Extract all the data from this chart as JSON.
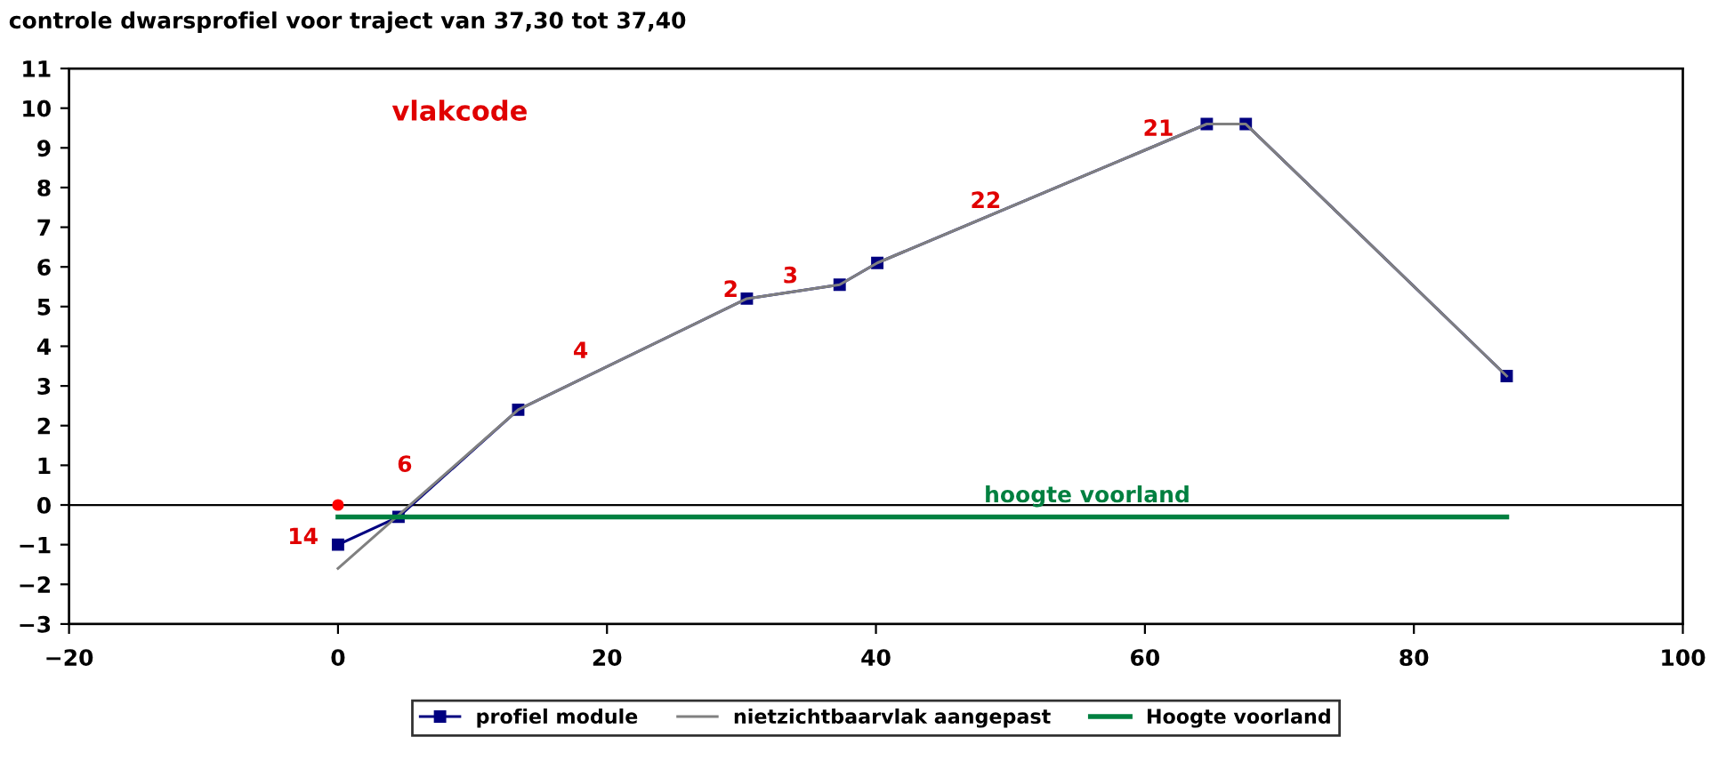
{
  "chart_data": {
    "type": "line",
    "title": "controle dwarsprofiel voor traject van 37,30 tot 37,40",
    "xlim": [
      -20,
      100
    ],
    "xticks": [
      -20,
      0,
      20,
      40,
      60,
      80,
      100
    ],
    "ylim": [
      -3,
      11
    ],
    "yticks": [
      -3,
      -2,
      -1,
      0,
      1,
      2,
      3,
      4,
      5,
      6,
      7,
      8,
      9,
      10,
      11
    ],
    "grid": false,
    "legend": "bottom",
    "ref_lines": [
      {
        "axis": "y",
        "value": 0,
        "color": "#000000"
      }
    ],
    "series": [
      {
        "name": "profiel module",
        "color": "#000080",
        "marker": "square",
        "x": [
          0,
          4.5,
          13.4,
          30.4,
          37.3,
          40.1,
          64.6,
          67.5,
          86.9
        ],
        "values": [
          -1.0,
          -0.3,
          2.4,
          5.2,
          5.55,
          6.1,
          9.6,
          9.6,
          3.25
        ]
      },
      {
        "color": "#ff0000",
        "marker": "circle",
        "type": "scatter",
        "x": [
          0
        ],
        "values": [
          0
        ]
      },
      {
        "name": "nietzichtbaarvlak aangepast",
        "color": "#808080",
        "marker": "none",
        "x": [
          0,
          13.4,
          30.4,
          37.3,
          40.1,
          64.6,
          67.5,
          86.9
        ],
        "values": [
          -1.6,
          2.4,
          5.2,
          5.55,
          6.1,
          9.6,
          9.6,
          3.25
        ]
      },
      {
        "name": "Hoogte voorland",
        "color": "#008040",
        "marker": "none",
        "x": [
          0,
          86.9
        ],
        "values": [
          -0.3,
          -0.3
        ]
      }
    ],
    "annotations": [
      "vlakcode",
      "14",
      "6",
      "4",
      "2",
      "3",
      "22",
      "21",
      "hoogte voorland"
    ]
  }
}
